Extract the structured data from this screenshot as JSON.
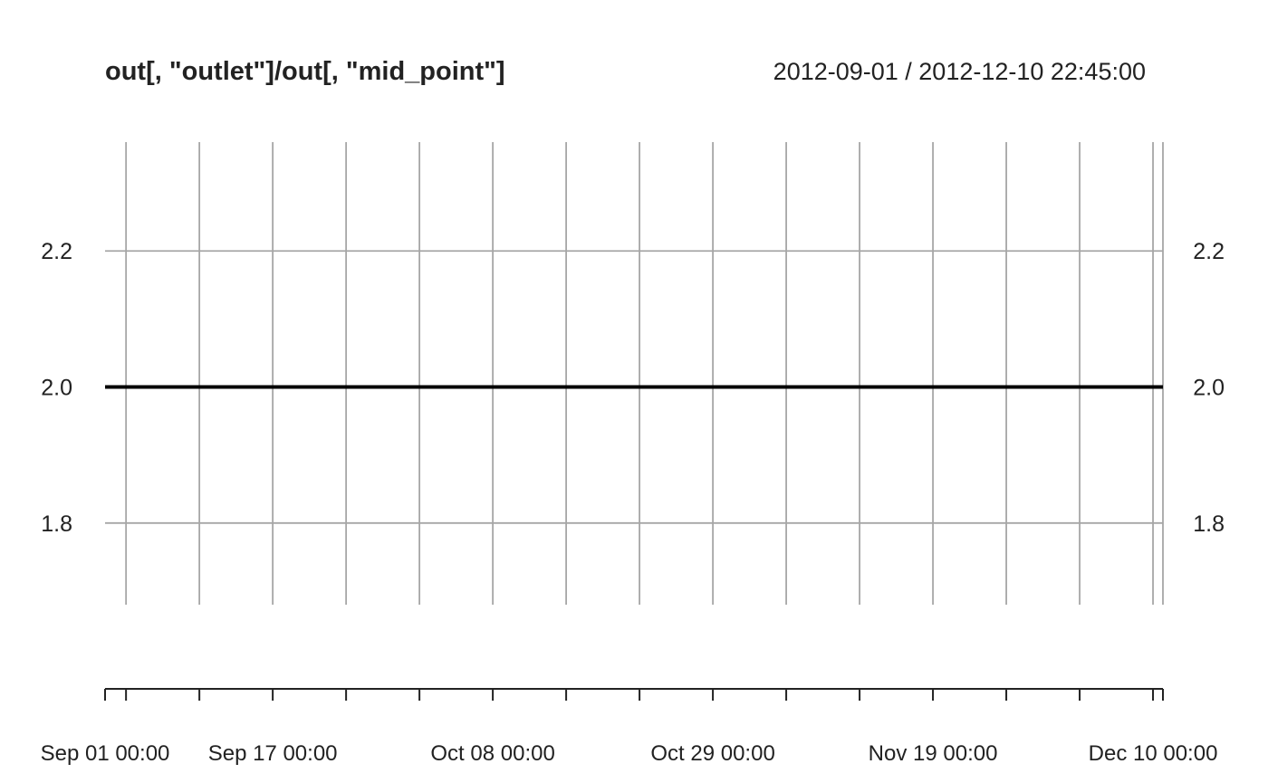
{
  "chart_data": {
    "type": "line",
    "title": "out[, \"outlet\"]/out[, \"mid_point\"]",
    "date_range": "2012-09-01 / 2012-12-10 22:45:00",
    "xlabel": "",
    "ylabel": "",
    "x_range": [
      "2012-09-01 00:00",
      "2012-12-10 22:45"
    ],
    "ylim": [
      1.68,
      2.36
    ],
    "y_ticks": [
      "1.8",
      "2.0",
      "2.2"
    ],
    "x_tick_labels": [
      "Sep 01 00:00",
      "Sep 17 00:00",
      "Oct 08 00:00",
      "Oct 29 00:00",
      "Nov 19 00:00",
      "Dec 10 00:00"
    ],
    "series": [
      {
        "x": [
          "2012-09-01 00:00",
          "2012-12-10 22:45"
        ],
        "values": [
          2.0,
          2.0
        ]
      }
    ],
    "grid": true,
    "line_color": "#000000",
    "grid_color": "#a6a6a6"
  }
}
